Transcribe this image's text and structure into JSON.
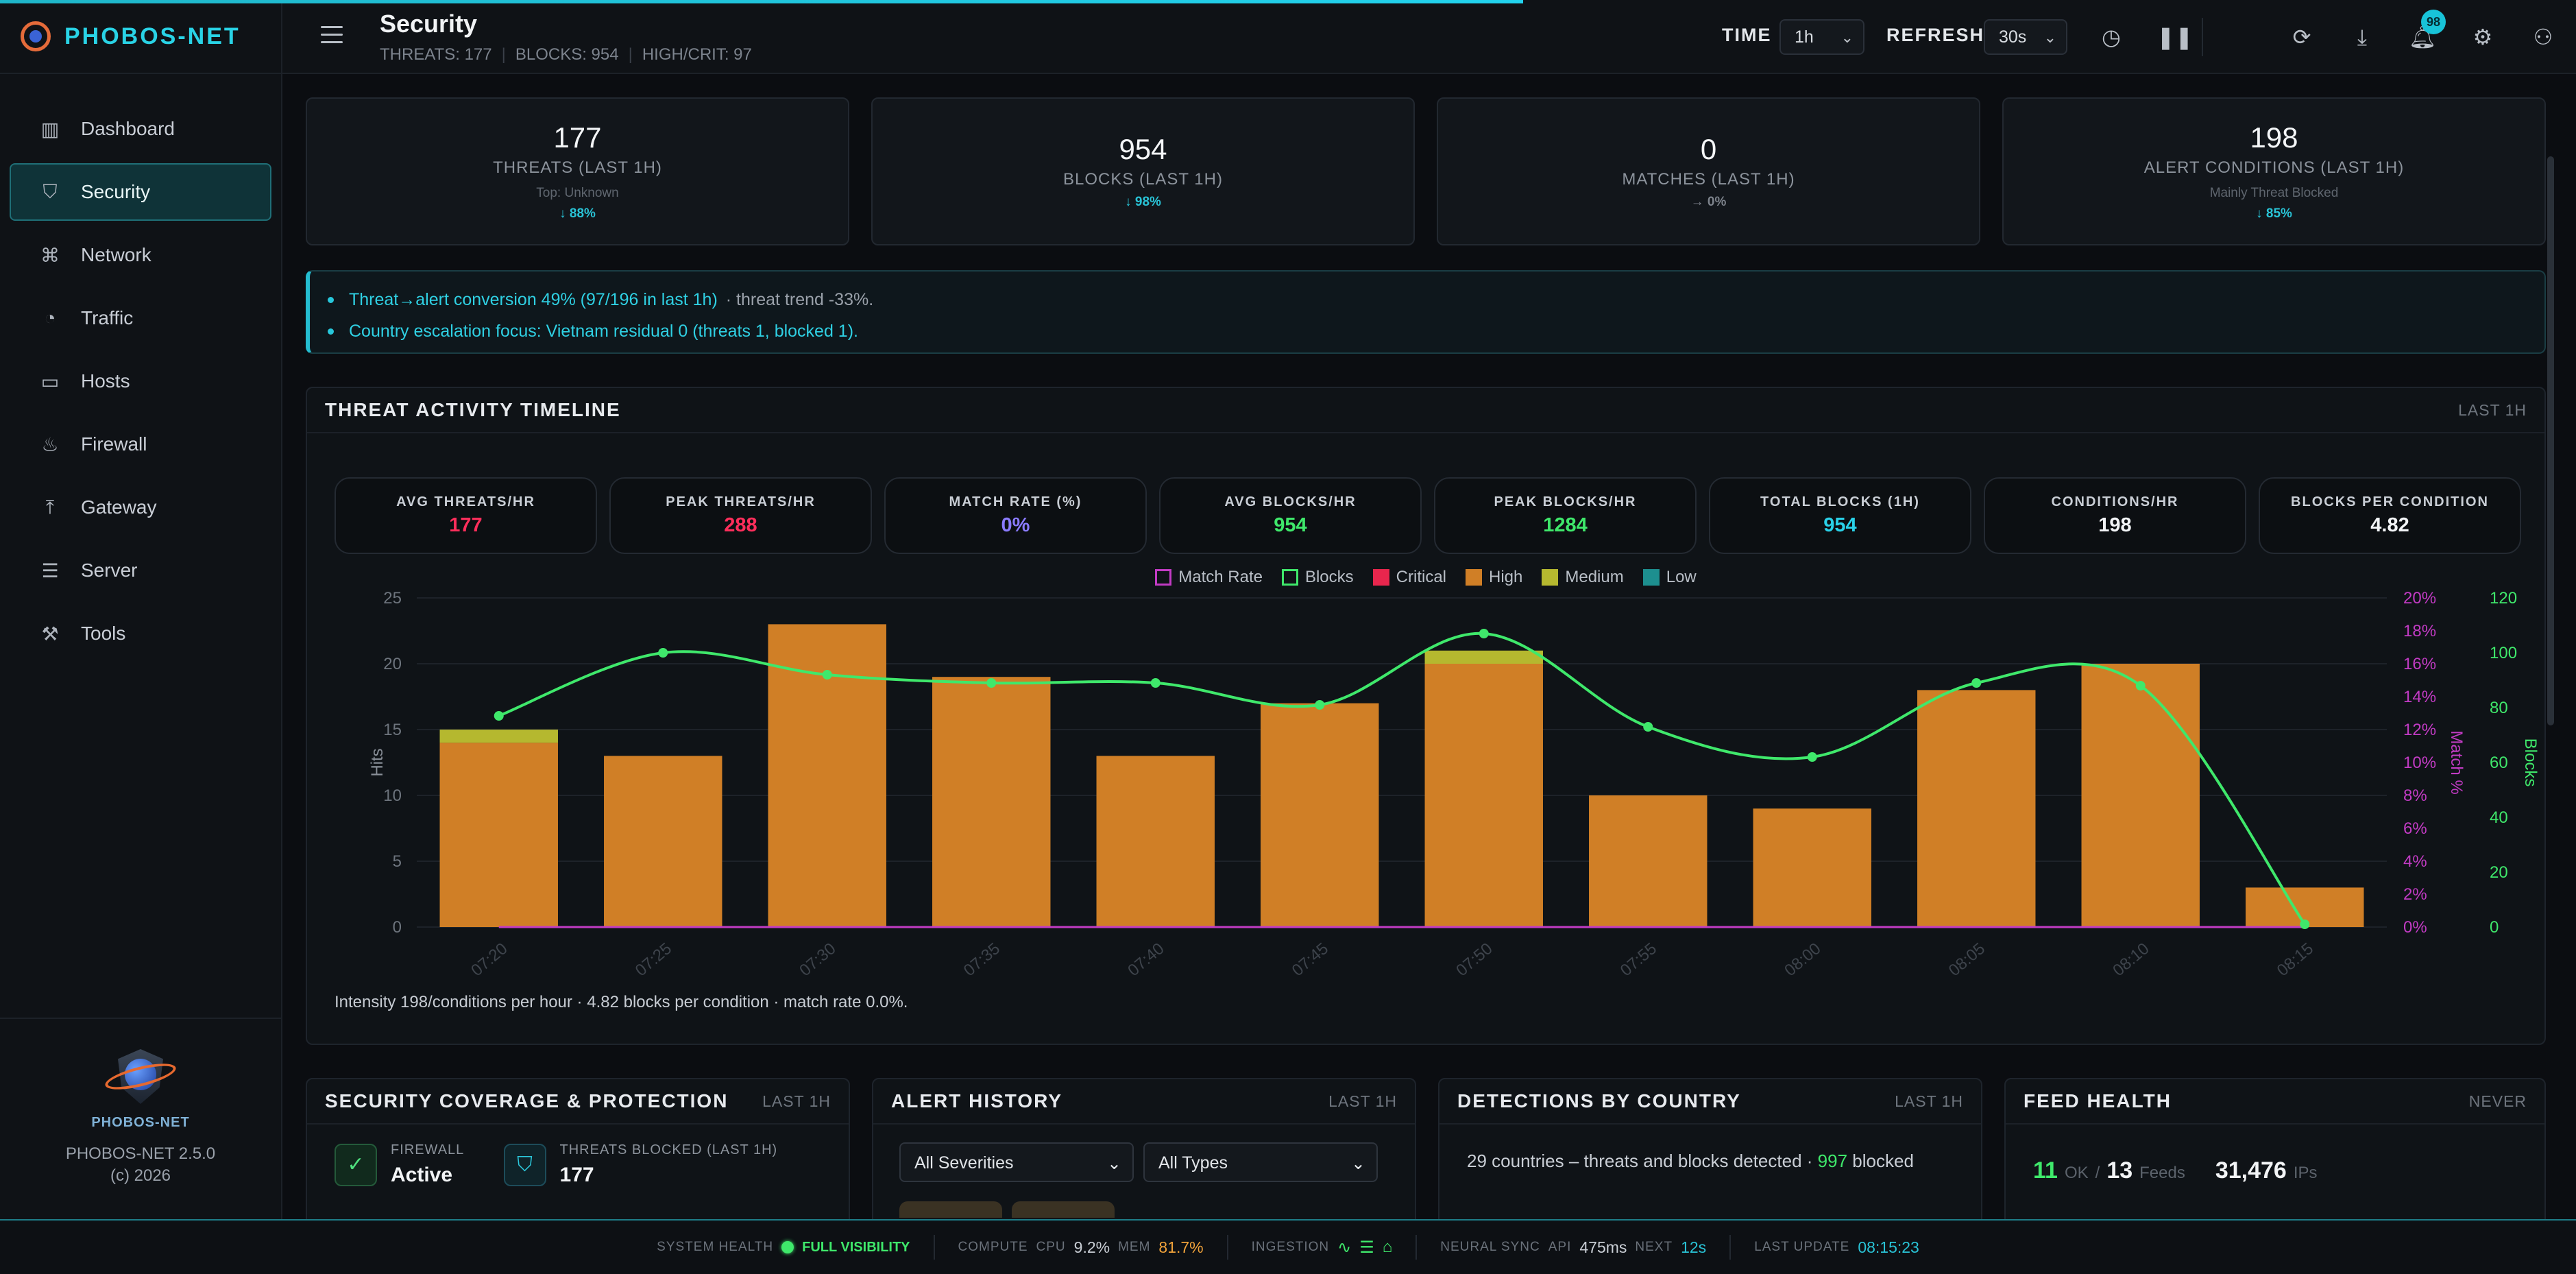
{
  "brand": {
    "name": "PHOBOS-NET",
    "emblem_text": "PHOBOS-NET",
    "version": "PHOBOS-NET 2.5.0",
    "copyright": "(c) 2026"
  },
  "sidebar": {
    "items": [
      {
        "label": "Dashboard",
        "icon": "bar-chart-icon",
        "glyph": "▥"
      },
      {
        "label": "Security",
        "icon": "shield-icon",
        "glyph": "⛉"
      },
      {
        "label": "Network",
        "icon": "network-icon",
        "glyph": "⌘"
      },
      {
        "label": "Traffic",
        "icon": "gauge-icon",
        "glyph": "◔"
      },
      {
        "label": "Hosts",
        "icon": "monitor-icon",
        "glyph": "▭"
      },
      {
        "label": "Firewall",
        "icon": "flame-icon",
        "glyph": "♨"
      },
      {
        "label": "Gateway",
        "icon": "gateway-icon",
        "glyph": "⤒"
      },
      {
        "label": "Server",
        "icon": "server-icon",
        "glyph": "☰"
      },
      {
        "label": "Tools",
        "icon": "wrench-icon",
        "glyph": "⚒"
      }
    ]
  },
  "header": {
    "title": "Security",
    "sub": [
      "THREATS: 177",
      "BLOCKS: 954",
      "HIGH/CRIT: 97"
    ],
    "time_label": "TIME",
    "time_value": "1h",
    "refresh_label": "REFRESH",
    "refresh_value": "30s",
    "notifications": "98"
  },
  "kpis": [
    {
      "value": "177",
      "label": "THREATS (LAST 1H)",
      "sub": "Top: Unknown",
      "trend": "↓ 88%"
    },
    {
      "value": "954",
      "label": "BLOCKS (LAST 1H)",
      "sub": "",
      "trend": "↓ 98%"
    },
    {
      "value": "0",
      "label": "MATCHES (LAST 1H)",
      "sub": "",
      "trend": "→ 0%"
    },
    {
      "value": "198",
      "label": "ALERT CONDITIONS (LAST 1H)",
      "sub": "Mainly Threat Blocked",
      "trend": "↓ 85%"
    }
  ],
  "insights": {
    "line1_hl": "Threat→alert conversion 49% (97/196 in last 1h)",
    "line1_rest": "· threat trend -33%.",
    "line2": "Country escalation focus: Vietnam residual 0 (threats 1, blocked 1)."
  },
  "timeline": {
    "title": "THREAT ACTIVITY TIMELINE",
    "tag": "LAST 1H",
    "metrics": [
      {
        "label": "AVG THREATS/HR",
        "value": "177",
        "color": "red"
      },
      {
        "label": "PEAK THREATS/HR",
        "value": "288",
        "color": "red"
      },
      {
        "label": "MATCH RATE (%)",
        "value": "0%",
        "color": "blue"
      },
      {
        "label": "AVG BLOCKS/HR",
        "value": "954",
        "color": "green"
      },
      {
        "label": "PEAK BLOCKS/HR",
        "value": "1284",
        "color": "green"
      },
      {
        "label": "TOTAL BLOCKS (1H)",
        "value": "954",
        "color": "cyan"
      },
      {
        "label": "CONDITIONS/HR",
        "value": "198",
        "color": "white"
      },
      {
        "label": "BLOCKS PER CONDITION",
        "value": "4.82",
        "color": "white"
      }
    ],
    "note": "Intensity 198/conditions per hour · 4.82 blocks per condition · match rate 0.0%."
  },
  "chart_data": {
    "type": "bar",
    "stacked": true,
    "categories": [
      "07:20",
      "07:25",
      "07:30",
      "07:35",
      "07:40",
      "07:45",
      "07:50",
      "07:55",
      "08:00",
      "08:05",
      "08:10",
      "08:15"
    ],
    "series": [
      {
        "name": "Critical",
        "axis": "left",
        "color": "#e8264d",
        "values": [
          0,
          0,
          0,
          0,
          0,
          0,
          0,
          0,
          0,
          0,
          0,
          0
        ]
      },
      {
        "name": "High",
        "axis": "left",
        "color": "#d07f26",
        "values": [
          14,
          13,
          23,
          19,
          13,
          17,
          20,
          10,
          9,
          18,
          20,
          3
        ]
      },
      {
        "name": "Medium",
        "axis": "left",
        "color": "#b5b82f",
        "values": [
          1,
          0,
          0,
          0,
          0,
          0,
          1,
          0,
          0,
          0,
          0,
          0
        ]
      },
      {
        "name": "Low",
        "axis": "left",
        "color": "#1d8f8f",
        "values": [
          0,
          0,
          0,
          0,
          0,
          0,
          0,
          0,
          0,
          0,
          0,
          0
        ]
      },
      {
        "name": "Blocks",
        "type": "line",
        "axis": "right",
        "color": "#3fe86b",
        "values": [
          77,
          100,
          92,
          89,
          89,
          81,
          107,
          73,
          62,
          89,
          88,
          1
        ]
      },
      {
        "name": "Match Rate",
        "type": "line",
        "axis": "pct",
        "color": "#c23bc4",
        "values": [
          0,
          0,
          0,
          0,
          0,
          0,
          0,
          0,
          0,
          0,
          0,
          0
        ]
      }
    ],
    "ylabel": "Hits",
    "ylim": [
      0,
      25
    ],
    "yticks": [
      0,
      5,
      10,
      15,
      20,
      25
    ],
    "y2label": "Match %",
    "y2lim": [
      0,
      20
    ],
    "y2ticks": [
      "0%",
      "2%",
      "4%",
      "6%",
      "8%",
      "10%",
      "12%",
      "14%",
      "16%",
      "18%",
      "20%"
    ],
    "y3label": "Blocks",
    "y3lim": [
      0,
      120
    ],
    "y3ticks": [
      0,
      20,
      40,
      60,
      80,
      100,
      120
    ],
    "legend_position": "top-center",
    "grid": true
  },
  "coverage": {
    "title": "SECURITY COVERAGE & PROTECTION",
    "tag": "LAST 1H",
    "fw_label": "FIREWALL",
    "fw_value": "Active",
    "tb_label": "THREATS BLOCKED (LAST 1H)",
    "tb_value": "177"
  },
  "alerts": {
    "title": "ALERT HISTORY",
    "tag": "LAST 1H",
    "severity": "All Severities",
    "type": "All Types"
  },
  "countries": {
    "title": "DETECTIONS BY COUNTRY",
    "tag": "LAST 1H",
    "text_a": "29 countries – threats and blocks detected ·",
    "blocked": "997",
    "text_b": "blocked"
  },
  "feed": {
    "title": "FEED HEALTH",
    "tag": "NEVER",
    "ok": "11",
    "ok_label": "OK",
    "slash": "/",
    "feeds": "13",
    "feeds_label": "Feeds",
    "ips": "31,476",
    "ips_label": "IPs"
  },
  "status": {
    "health_key": "SYSTEM HEALTH",
    "health_val": "FULL VISIBILITY",
    "compute_key": "COMPUTE",
    "cpu_key": "CPU",
    "cpu_val": "9.2%",
    "mem_key": "MEM",
    "mem_val": "81.7%",
    "ingest_key": "INGESTION",
    "neural_key": "NEURAL SYNC",
    "api_key": "API",
    "api_val": "475ms",
    "next_key": "NEXT",
    "next_val": "12s",
    "update_key": "LAST UPDATE",
    "update_val": "08:15:23"
  }
}
